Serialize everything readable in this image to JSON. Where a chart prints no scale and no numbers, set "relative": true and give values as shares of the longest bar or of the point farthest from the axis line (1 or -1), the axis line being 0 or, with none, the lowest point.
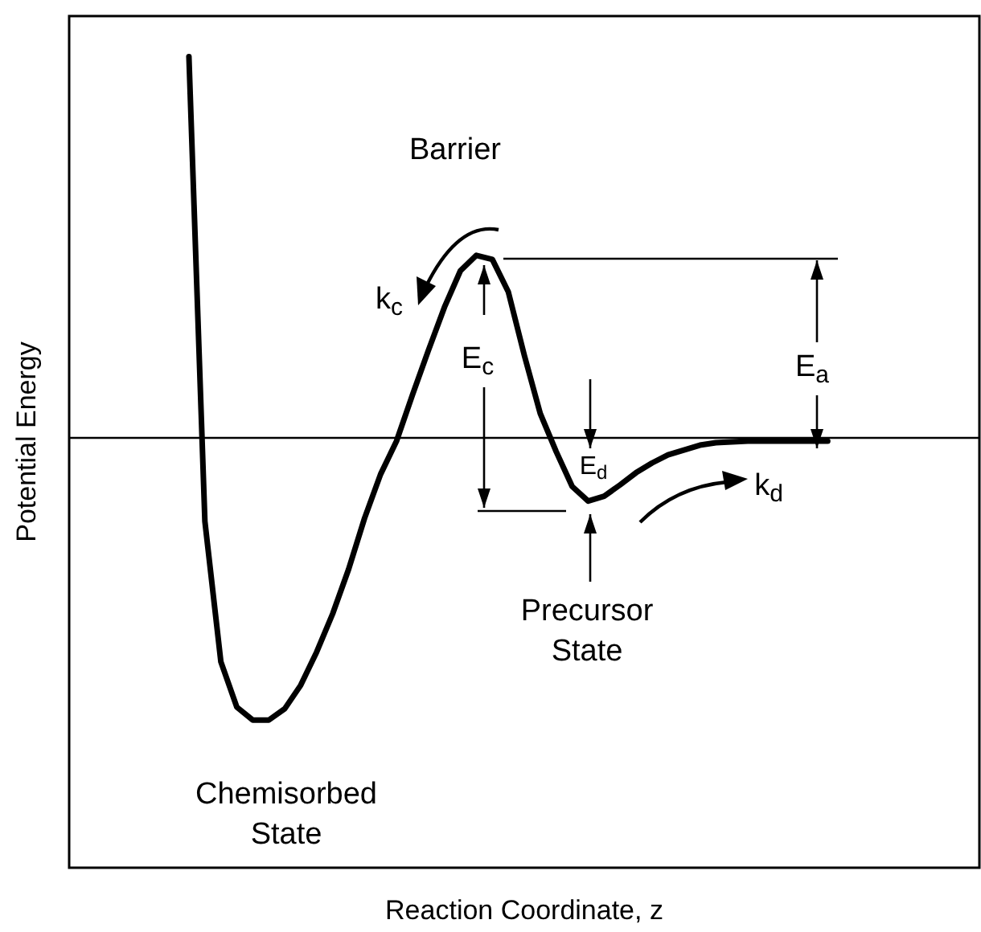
{
  "chart_data": {
    "type": "line",
    "relative": true,
    "xlabel": "Reaction Coordinate, z",
    "ylabel": "Potential Energy",
    "categories": [
      null,
      null,
      null,
      null,
      null,
      null,
      null,
      null,
      null,
      null,
      null,
      null,
      null,
      null,
      null,
      null,
      null,
      null,
      null,
      null,
      null,
      null,
      null,
      null,
      null,
      null,
      null,
      null,
      null,
      null,
      null,
      null,
      null,
      null,
      null,
      null,
      null,
      null,
      null,
      null,
      null,
      null,
      null,
      null,
      null,
      null,
      null,
      null,
      null,
      null,
      null,
      null,
      null,
      null,
      null,
      null,
      null
    ],
    "series": [
      {
        "color": "#000000",
        "values": [
          null,
          null,
          null,
          null,
          null,
          null,
          null,
          1,
          0.427,
          0.254,
          0.198,
          0.182,
          0.182,
          0.196,
          0.225,
          0.266,
          0.313,
          0.368,
          0.431,
          0.485,
          0.526,
          0.583,
          0.638,
          0.691,
          0.736,
          0.755,
          0.75,
          0.71,
          0.632,
          0.56,
          0.513,
          0.47,
          0.452,
          0.458,
          0.472,
          0.487,
          0.499,
          0.509,
          0.515,
          0.521,
          0.524,
          0.525,
          0.526,
          0.526,
          0.526,
          0.526,
          0.526,
          0.526,
          null,
          null,
          null,
          null,
          null,
          null,
          null,
          null,
          null
        ]
      }
    ],
    "ref_lines": [
      {
        "axis": "y",
        "value": 0.526,
        "color": "#000000"
      }
    ],
    "annotations": [
      "Barrier",
      "k$_{c}$",
      "E$_{c}$",
      "E$_{a}$",
      "E$_{d}$",
      "k$_{d}$",
      "Precursor State",
      "Chemisorbed State"
    ],
    "grid": false
  }
}
